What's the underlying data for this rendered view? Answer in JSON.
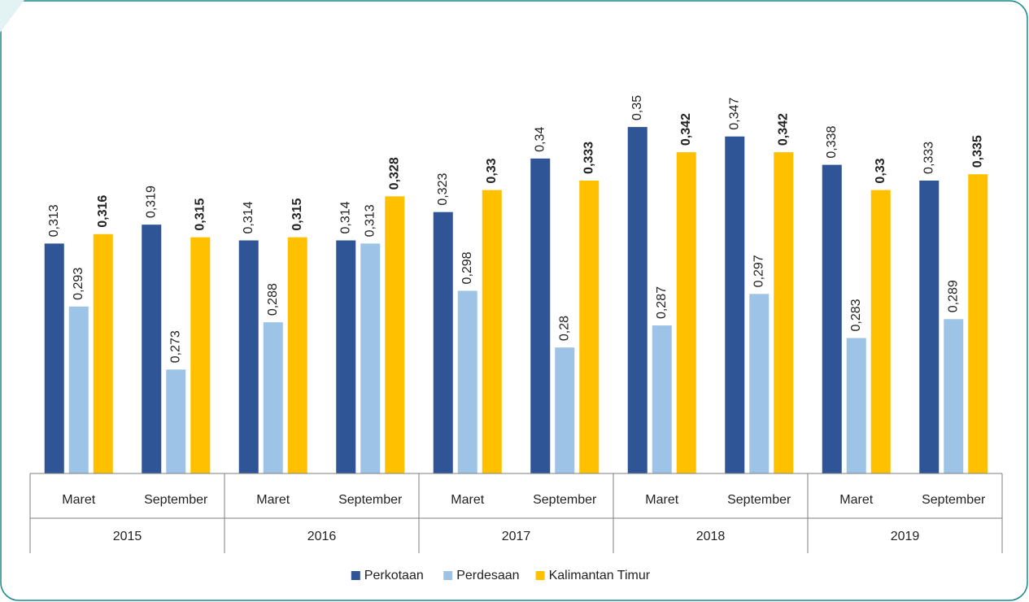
{
  "chart_data": {
    "type": "bar",
    "categories": [
      "Maret",
      "September",
      "Maret",
      "September",
      "Maret",
      "September",
      "Maret",
      "September",
      "Maret",
      "September"
    ],
    "years": [
      "2015",
      "2016",
      "2017",
      "2018",
      "2019"
    ],
    "series": [
      {
        "name": "Perkotaan",
        "color": "#2f5597",
        "values": [
          0.313,
          0.319,
          0.314,
          0.314,
          0.323,
          0.34,
          0.35,
          0.347,
          0.338,
          0.333
        ],
        "value_labels": [
          "0,313",
          "0,319",
          "0,314",
          "0,314",
          "0,323",
          "0,34",
          "0,35",
          "0,347",
          "0,338",
          "0,333"
        ]
      },
      {
        "name": "Perdesaan",
        "color": "#9dc3e6",
        "values": [
          0.293,
          0.273,
          0.288,
          0.313,
          0.298,
          0.28,
          0.287,
          0.297,
          0.283,
          0.289
        ],
        "value_labels": [
          "0,293",
          "0,273",
          "0,288",
          "0,313",
          "0,298",
          "0,28",
          "0,287",
          "0,297",
          "0,283",
          "0,289"
        ]
      },
      {
        "name": "Kalimantan Timur",
        "color": "#ffc000",
        "label_weight": "bold",
        "values": [
          0.316,
          0.315,
          0.315,
          0.328,
          0.33,
          0.333,
          0.342,
          0.342,
          0.33,
          0.335
        ],
        "value_labels": [
          "0,316",
          "0,315",
          "0,315",
          "0,328",
          "0,33",
          "0,333",
          "0,342",
          "0,342",
          "0,33",
          "0,335"
        ]
      }
    ],
    "ylim": [
      0.24,
      0.38
    ],
    "legend": "bottom"
  }
}
